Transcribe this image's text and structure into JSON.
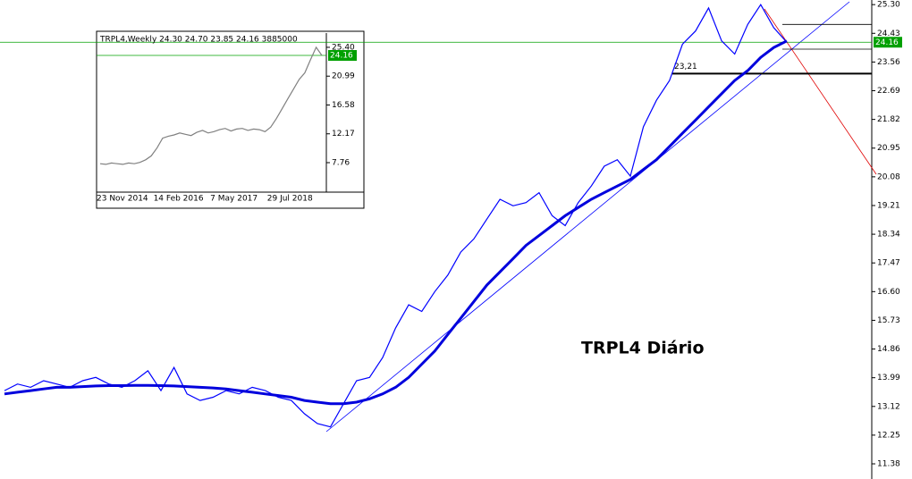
{
  "chart_data": [
    {
      "type": "line",
      "title": "TRPL4 Diário",
      "ylim": [
        10.92,
        25.44
      ],
      "yticks": [
        {
          "value": 25.3,
          "label": "25.30"
        },
        24.43,
        23.56,
        22.69,
        21.82,
        20.95,
        20.08,
        19.21,
        18.34,
        17.47,
        {
          "value": 16.6,
          "label": "16.60"
        },
        15.73,
        14.86,
        13.99,
        13.12,
        12.25,
        11.38
      ],
      "last_price": 24.16,
      "last_price_color": "#00a000",
      "levels": [
        24.7,
        23.95
      ],
      "support": {
        "value": 23.21,
        "label": "23,21"
      },
      "series": [
        {
          "color": "#0000ff",
          "line_width": 1.2,
          "values": [
            13.6,
            13.8,
            13.7,
            13.9,
            13.8,
            13.7,
            13.9,
            14.0,
            13.8,
            13.7,
            13.9,
            14.2,
            13.6,
            14.3,
            13.5,
            13.3,
            13.4,
            13.6,
            13.5,
            13.7,
            13.6,
            13.4,
            13.3,
            12.9,
            12.6,
            12.5,
            13.2,
            13.9,
            14.0,
            14.6,
            15.5,
            16.2,
            16.0,
            16.6,
            17.1,
            17.8,
            18.2,
            18.8,
            19.4,
            19.2,
            19.3,
            19.6,
            18.9,
            18.6,
            19.3,
            19.8,
            20.4,
            20.6,
            20.1,
            21.6,
            22.4,
            23.0,
            24.1,
            24.5,
            25.2,
            24.2,
            23.8,
            24.7,
            25.3,
            24.6,
            24.16
          ]
        },
        {
          "color": "#0000dd",
          "line_width": 3,
          "values": [
            13.5,
            13.55,
            13.6,
            13.65,
            13.7,
            13.7,
            13.72,
            13.74,
            13.75,
            13.75,
            13.76,
            13.76,
            13.75,
            13.74,
            13.72,
            13.7,
            13.68,
            13.65,
            13.6,
            13.55,
            13.5,
            13.45,
            13.4,
            13.3,
            13.25,
            13.2,
            13.2,
            13.25,
            13.35,
            13.5,
            13.7,
            14.0,
            14.4,
            14.8,
            15.3,
            15.8,
            16.3,
            16.8,
            17.2,
            17.6,
            18.0,
            18.3,
            18.6,
            18.9,
            19.15,
            19.4,
            19.6,
            19.8,
            20.0,
            20.3,
            20.6,
            21.0,
            21.4,
            21.8,
            22.2,
            22.6,
            23.0,
            23.3,
            23.7,
            24.0,
            24.2
          ]
        }
      ]
    },
    {
      "type": "line",
      "title": "TRPL4,Weekly  24.30 24.70 23.85 24.16  3885000",
      "ylim": [
        5.3,
        27.58
      ],
      "yticks": [
        {
          "value": 25.4,
          "label": "25.40"
        },
        20.99,
        16.58,
        12.17,
        7.76
      ],
      "last_price": 24.16,
      "last_price_color": "#00a000",
      "categories": [
        "23 Nov 2014",
        null,
        null,
        null,
        null,
        null,
        null,
        null,
        null,
        null,
        "14 Feb 2016",
        null,
        null,
        null,
        null,
        null,
        null,
        null,
        null,
        null,
        "7 May 2017",
        null,
        null,
        null,
        null,
        null,
        null,
        null,
        null,
        null,
        "29 Jul 2018",
        null,
        null,
        null,
        null,
        null,
        null,
        null,
        null,
        null
      ],
      "series": [
        {
          "color": "#808080",
          "line_width": 1.2,
          "values": [
            7.6,
            7.5,
            7.7,
            7.6,
            7.5,
            7.7,
            7.6,
            7.8,
            8.2,
            8.8,
            10.0,
            11.5,
            11.8,
            12.0,
            12.3,
            12.1,
            11.9,
            12.4,
            12.7,
            12.3,
            12.5,
            12.8,
            13.0,
            12.6,
            12.9,
            13.0,
            12.7,
            12.9,
            12.8,
            12.5,
            13.2,
            14.5,
            16.0,
            17.5,
            19.0,
            20.5,
            21.5,
            23.5,
            25.4,
            24.16
          ]
        }
      ]
    }
  ]
}
